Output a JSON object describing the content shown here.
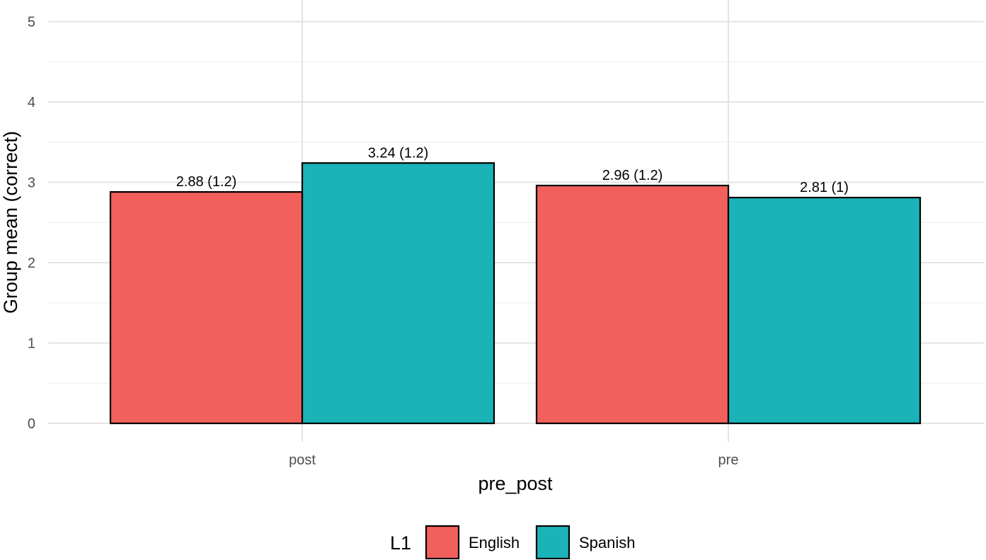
{
  "chart_data": {
    "type": "bar",
    "title": "",
    "xlabel": "pre_post",
    "ylabel": "Group mean (correct)",
    "categories": [
      "post",
      "pre"
    ],
    "ylim": [
      0,
      5
    ],
    "yticks": [
      0,
      1,
      2,
      3,
      4,
      5
    ],
    "grid": true,
    "legend": {
      "title": "L1",
      "placement": "bottom"
    },
    "series": [
      {
        "name": "English",
        "color": "#F2605C",
        "values": [
          2.88,
          2.96
        ],
        "labels": [
          "2.88 (1.2)",
          "2.96 (1.2)"
        ]
      },
      {
        "name": "Spanish",
        "color": "#1AB3B8",
        "values": [
          3.24,
          2.81
        ],
        "labels": [
          "3.24 (1.2)",
          "2.81 (1)"
        ]
      }
    ]
  }
}
